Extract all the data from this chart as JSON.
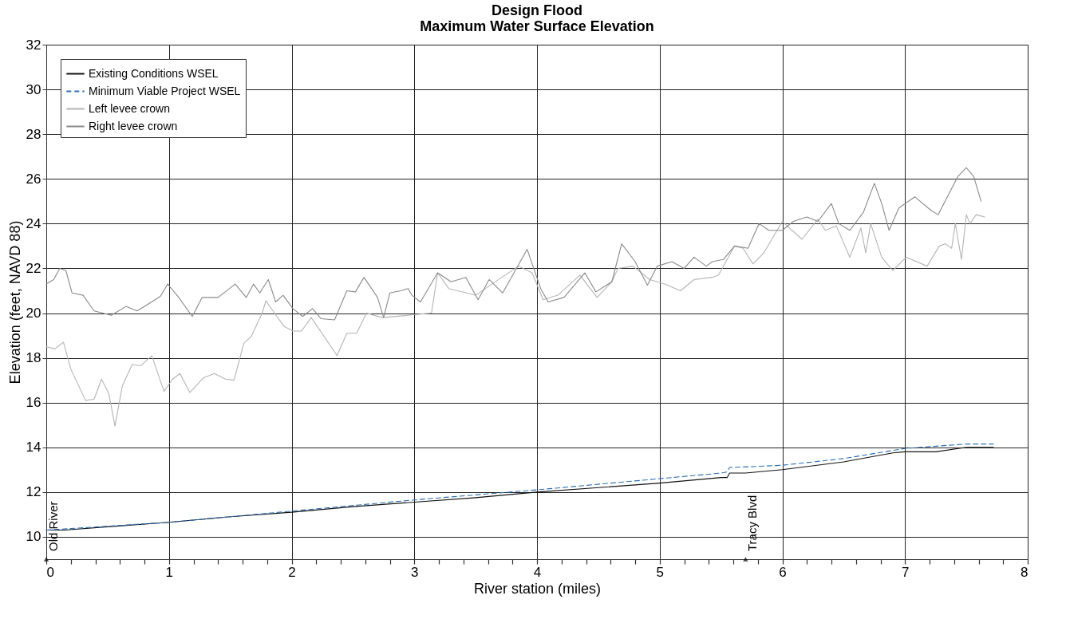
{
  "chart_data": {
    "type": "line",
    "title": "Design Flood",
    "subtitle": "Maximum Water Surface Elevation",
    "xlabel": "River station (miles)",
    "ylabel": "Elevation (feet, NAVD 88)",
    "xlim": [
      0,
      8
    ],
    "ylim": [
      9,
      32
    ],
    "xticks": [
      0,
      {
        "value": 0.2,
        "label": null
      },
      {
        "value": 0.4,
        "label": null
      },
      {
        "value": 0.6,
        "label": null
      },
      {
        "value": 0.8,
        "label": null
      },
      1,
      {
        "value": 1.2,
        "label": null
      },
      {
        "value": 1.4,
        "label": null
      },
      {
        "value": 1.6,
        "label": null
      },
      {
        "value": 1.8,
        "label": null
      },
      2,
      {
        "value": 2.2,
        "label": null
      },
      {
        "value": 2.4,
        "label": null
      },
      {
        "value": 2.6,
        "label": null
      },
      {
        "value": 2.8,
        "label": null
      },
      3,
      {
        "value": 3.2,
        "label": null
      },
      {
        "value": 3.4,
        "label": null
      },
      {
        "value": 3.6,
        "label": null
      },
      {
        "value": 3.8,
        "label": null
      },
      4,
      {
        "value": 4.2,
        "label": null
      },
      {
        "value": 4.4,
        "label": null
      },
      {
        "value": 4.6,
        "label": null
      },
      {
        "value": 4.8,
        "label": null
      },
      5,
      {
        "value": 5.2,
        "label": null
      },
      {
        "value": 5.4,
        "label": null
      },
      {
        "value": 5.6,
        "label": null
      },
      {
        "value": 5.8,
        "label": null
      },
      6,
      {
        "value": 6.2,
        "label": null
      },
      {
        "value": 6.4,
        "label": null
      },
      {
        "value": 6.6,
        "label": null
      },
      {
        "value": 6.8,
        "label": null
      },
      7,
      {
        "value": 7.2,
        "label": null
      },
      {
        "value": 7.4,
        "label": null
      },
      {
        "value": 7.6,
        "label": null
      },
      {
        "value": 7.8,
        "label": null
      },
      8
    ],
    "yticks": [
      10,
      12,
      14,
      16,
      18,
      20,
      22,
      24,
      26,
      28,
      30,
      32
    ],
    "grid": true,
    "legend": "top left",
    "marker": "none",
    "series": [
      {
        "name": "Existing Conditions WSEL",
        "color": "#111111",
        "line_style": "solid",
        "x": [
          0,
          0.15,
          0.5,
          1,
          1.5,
          2,
          2.5,
          3,
          3.5,
          4,
          4.5,
          5,
          5.5,
          5.55,
          5.57,
          5.7,
          6,
          6.5,
          6.9,
          7.0,
          7.25,
          7.5,
          7.72
        ],
        "values": [
          10.3,
          10.3,
          10.45,
          10.65,
          10.9,
          11.1,
          11.35,
          11.55,
          11.75,
          12.0,
          12.2,
          12.4,
          12.65,
          12.65,
          12.85,
          12.85,
          13.0,
          13.35,
          13.75,
          13.8,
          13.8,
          14.0,
          14.0
        ]
      },
      {
        "name": "Minimum Viable Project WSEL",
        "color": "#2a6fb5",
        "line_style": "dashed",
        "x": [
          0,
          1,
          2,
          3,
          4,
          5,
          5.5,
          5.55,
          5.57,
          5.8,
          6,
          6.5,
          7,
          7.5,
          7.72
        ],
        "values": [
          10.3,
          10.65,
          11.15,
          11.65,
          12.1,
          12.6,
          12.85,
          12.9,
          13.1,
          13.15,
          13.2,
          13.5,
          13.95,
          14.15,
          14.15
        ]
      },
      {
        "name": "Left levee crown",
        "color": "#b4b4b4",
        "line_style": "solid",
        "x": [
          0,
          0.07,
          0.14,
          0.2,
          0.32,
          0.39,
          0.45,
          0.51,
          0.56,
          0.62,
          0.7,
          0.77,
          0.86,
          0.96,
          1.03,
          1.09,
          1.17,
          1.28,
          1.37,
          1.46,
          1.53,
          1.61,
          1.67,
          1.76,
          1.79,
          1.86,
          1.94,
          2.01,
          2.08,
          2.16,
          2.37,
          2.45,
          2.53,
          2.61,
          2.74,
          2.94,
          3.14,
          3.19,
          3.28,
          3.5,
          3.74,
          3.85,
          3.96,
          4.05,
          4.17,
          4.35,
          4.49,
          4.61,
          4.66,
          4.78,
          4.92,
          5.04,
          5.17,
          5.28,
          5.43,
          5.48,
          5.61,
          5.68,
          5.76,
          5.85,
          6.0,
          6.16,
          6.29,
          6.35,
          6.44,
          6.55,
          6.64,
          6.68,
          6.72,
          6.81,
          6.9,
          7.01,
          7.18,
          7.28,
          7.33,
          7.38,
          7.41,
          7.46,
          7.5,
          7.53,
          7.58,
          7.65
        ],
        "values": [
          18.5,
          18.4,
          18.7,
          17.5,
          16.1,
          16.15,
          17.05,
          16.4,
          14.95,
          16.75,
          17.7,
          17.65,
          18.1,
          16.5,
          17.05,
          17.3,
          16.45,
          17.1,
          17.3,
          17.05,
          17.0,
          18.65,
          18.95,
          20.0,
          20.55,
          20.0,
          19.4,
          19.2,
          19.2,
          19.8,
          18.1,
          19.1,
          19.1,
          20.0,
          19.8,
          19.9,
          20.0,
          21.8,
          21.1,
          20.8,
          21.7,
          22.1,
          21.8,
          20.6,
          20.8,
          21.7,
          20.7,
          21.4,
          22.0,
          22.1,
          21.5,
          21.3,
          21.0,
          21.5,
          21.6,
          21.7,
          23.0,
          22.9,
          22.2,
          22.7,
          24.1,
          23.3,
          24.2,
          23.7,
          23.9,
          22.5,
          23.8,
          22.7,
          24.0,
          22.5,
          21.9,
          22.5,
          22.1,
          23.0,
          23.1,
          22.9,
          24.0,
          22.4,
          24.4,
          24.0,
          24.4,
          24.3
        ]
      },
      {
        "name": "Right levee crown",
        "color": "#8a8a8a",
        "line_style": "solid",
        "x": [
          0,
          0.06,
          0.11,
          0.16,
          0.21,
          0.3,
          0.39,
          0.46,
          0.53,
          0.65,
          0.74,
          0.83,
          0.93,
          0.99,
          1.08,
          1.19,
          1.27,
          1.4,
          1.54,
          1.63,
          1.69,
          1.74,
          1.81,
          1.87,
          1.93,
          2.01,
          2.09,
          2.17,
          2.24,
          2.35,
          2.45,
          2.52,
          2.59,
          2.7,
          2.75,
          2.8,
          2.89,
          2.95,
          2.98,
          3.05,
          3.19,
          3.3,
          3.42,
          3.52,
          3.61,
          3.72,
          3.92,
          4.03,
          4.09,
          4.22,
          4.39,
          4.48,
          4.61,
          4.69,
          4.8,
          4.9,
          4.98,
          5.1,
          5.2,
          5.28,
          5.38,
          5.43,
          5.52,
          5.61,
          5.72,
          5.81,
          5.89,
          6.0,
          6.09,
          6.2,
          6.29,
          6.4,
          6.46,
          6.55,
          6.66,
          6.75,
          6.81,
          6.87,
          6.95,
          7.08,
          7.21,
          7.27,
          7.43,
          7.5,
          7.56,
          7.62
        ],
        "values": [
          21.3,
          21.5,
          22.0,
          21.9,
          20.9,
          20.8,
          20.1,
          20.0,
          19.9,
          20.3,
          20.1,
          20.4,
          20.75,
          21.3,
          20.7,
          19.85,
          20.7,
          20.7,
          21.3,
          20.7,
          21.3,
          20.9,
          21.5,
          20.5,
          20.8,
          20.2,
          19.85,
          20.2,
          19.75,
          19.7,
          21.0,
          20.95,
          21.6,
          20.7,
          19.8,
          20.9,
          21.0,
          21.1,
          20.8,
          20.5,
          21.8,
          21.4,
          21.6,
          20.6,
          21.5,
          20.9,
          22.85,
          21.1,
          20.5,
          20.7,
          21.8,
          20.95,
          21.4,
          23.1,
          22.3,
          21.25,
          22.1,
          22.3,
          22.0,
          22.5,
          22.1,
          22.3,
          22.4,
          23.0,
          22.9,
          24.0,
          23.7,
          23.7,
          24.1,
          24.3,
          24.1,
          24.9,
          24.0,
          23.7,
          24.5,
          25.8,
          24.9,
          23.7,
          24.7,
          25.2,
          24.6,
          24.4,
          26.1,
          26.5,
          26.1,
          25.0
        ]
      }
    ],
    "annotations": [
      {
        "text": "Old River",
        "x": 0,
        "y": 9
      },
      {
        "text": "Tracy Blvd",
        "x": 5.7,
        "y": 9
      }
    ]
  }
}
